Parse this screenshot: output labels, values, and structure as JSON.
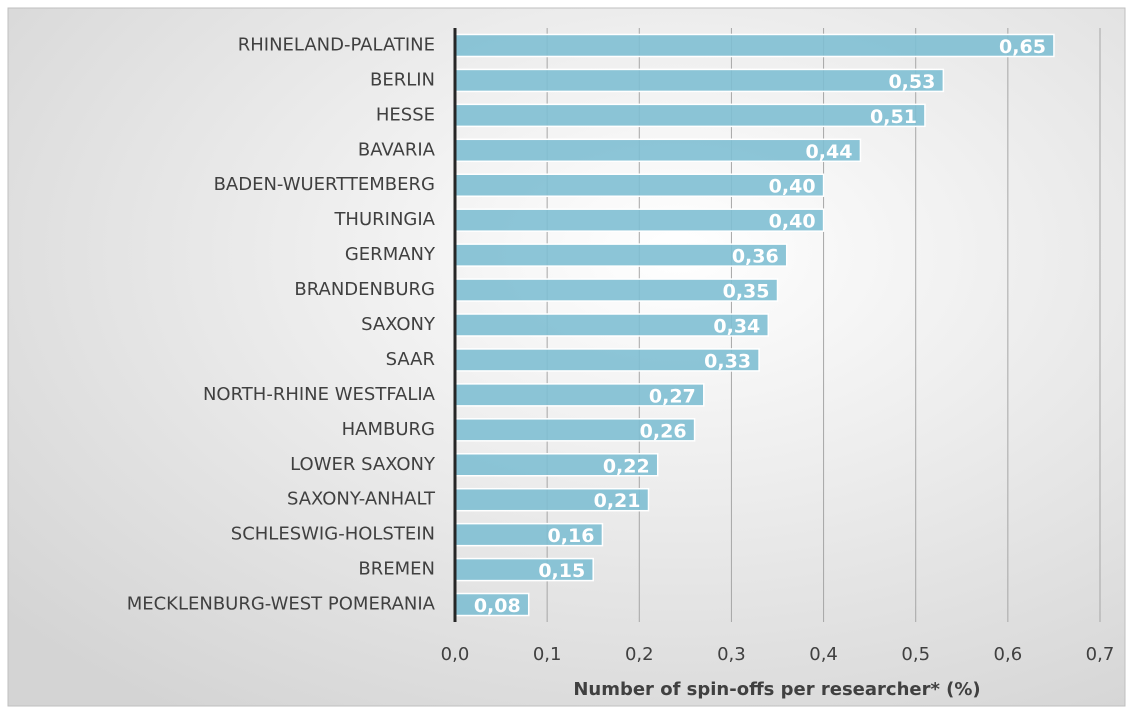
{
  "chart_data": {
    "type": "bar",
    "orientation": "horizontal",
    "x_label": "Number of spin-offs per researcher* (%)",
    "categories": [
      "RHINELAND-PALATINE",
      "BERLIN",
      "HESSE",
      "BAVARIA",
      "BADEN-WUERTTEMBERG",
      "THURINGIA",
      "GERMANY",
      "BRANDENBURG",
      "SAXONY",
      "SAAR",
      "NORTH-RHINE WESTFALIA",
      "HAMBURG",
      "LOWER SAXONY",
      "SAXONY-ANHALT",
      "SCHLESWIG-HOLSTEIN",
      "BREMEN",
      "MECKLENBURG-WEST POMERANIA"
    ],
    "values": [
      0.65,
      0.53,
      0.51,
      0.44,
      0.4,
      0.4,
      0.36,
      0.35,
      0.34,
      0.33,
      0.27,
      0.26,
      0.22,
      0.21,
      0.16,
      0.15,
      0.08
    ],
    "value_labels": [
      "0,65",
      "0,53",
      "0,51",
      "0,44",
      "0,40",
      "0,40",
      "0,36",
      "0,35",
      "0,34",
      "0,33",
      "0,27",
      "0,26",
      "0,22",
      "0,21",
      "0,16",
      "0,15",
      "0,08"
    ],
    "color": "#7fbfd3",
    "xlim": [
      0,
      0.7
    ],
    "xticks": [
      {
        "value": 0,
        "label": "0,0"
      },
      {
        "value": 0.1,
        "label": "0,1"
      },
      {
        "value": 0.2,
        "label": "0,2"
      },
      {
        "value": 0.3,
        "label": "0,3"
      },
      {
        "value": 0.4,
        "label": "0,4"
      },
      {
        "value": 0.5,
        "label": "0,5"
      },
      {
        "value": 0.6,
        "label": "0,6"
      },
      {
        "value": 0.7,
        "label": "0,7"
      }
    ],
    "grid": true
  }
}
